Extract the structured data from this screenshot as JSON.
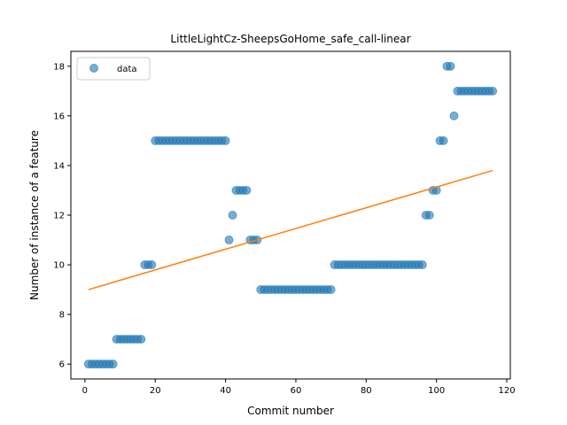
{
  "chart_data": {
    "type": "scatter",
    "title": "LittleLightCz-SheepsGoHome_safe_call-linear",
    "xlabel": "Commit number",
    "ylabel": "Number of instance of a feature",
    "xlim": [
      -4,
      121
    ],
    "ylim": [
      5.4,
      18.6
    ],
    "xticks": [
      0,
      20,
      40,
      60,
      80,
      100,
      120
    ],
    "yticks": [
      6,
      8,
      10,
      12,
      14,
      16,
      18
    ],
    "grid": false,
    "legend_placement": "top-left",
    "colors": {
      "scatter": "#1f77b4",
      "line": "#ff7f0e"
    },
    "series": [
      {
        "name": "data",
        "kind": "scatter",
        "points": [
          [
            1,
            6
          ],
          [
            2,
            6
          ],
          [
            3,
            6
          ],
          [
            4,
            6
          ],
          [
            5,
            6
          ],
          [
            6,
            6
          ],
          [
            7,
            6
          ],
          [
            8,
            6
          ],
          [
            9,
            7
          ],
          [
            10,
            7
          ],
          [
            11,
            7
          ],
          [
            12,
            7
          ],
          [
            13,
            7
          ],
          [
            14,
            7
          ],
          [
            15,
            7
          ],
          [
            16,
            7
          ],
          [
            17,
            10
          ],
          [
            18,
            10
          ],
          [
            19,
            10
          ],
          [
            20,
            15
          ],
          [
            21,
            15
          ],
          [
            22,
            15
          ],
          [
            23,
            15
          ],
          [
            24,
            15
          ],
          [
            25,
            15
          ],
          [
            26,
            15
          ],
          [
            27,
            15
          ],
          [
            28,
            15
          ],
          [
            29,
            15
          ],
          [
            30,
            15
          ],
          [
            31,
            15
          ],
          [
            32,
            15
          ],
          [
            33,
            15
          ],
          [
            34,
            15
          ],
          [
            35,
            15
          ],
          [
            36,
            15
          ],
          [
            37,
            15
          ],
          [
            38,
            15
          ],
          [
            39,
            15
          ],
          [
            40,
            15
          ],
          [
            41,
            11
          ],
          [
            42,
            12
          ],
          [
            43,
            13
          ],
          [
            44,
            13
          ],
          [
            45,
            13
          ],
          [
            46,
            13
          ],
          [
            47,
            11
          ],
          [
            48,
            11
          ],
          [
            49,
            11
          ],
          [
            50,
            9
          ],
          [
            51,
            9
          ],
          [
            52,
            9
          ],
          [
            53,
            9
          ],
          [
            54,
            9
          ],
          [
            55,
            9
          ],
          [
            56,
            9
          ],
          [
            57,
            9
          ],
          [
            58,
            9
          ],
          [
            59,
            9
          ],
          [
            60,
            9
          ],
          [
            61,
            9
          ],
          [
            62,
            9
          ],
          [
            63,
            9
          ],
          [
            64,
            9
          ],
          [
            65,
            9
          ],
          [
            66,
            9
          ],
          [
            67,
            9
          ],
          [
            68,
            9
          ],
          [
            69,
            9
          ],
          [
            70,
            9
          ],
          [
            71,
            10
          ],
          [
            72,
            10
          ],
          [
            73,
            10
          ],
          [
            74,
            10
          ],
          [
            75,
            10
          ],
          [
            76,
            10
          ],
          [
            77,
            10
          ],
          [
            78,
            10
          ],
          [
            79,
            10
          ],
          [
            80,
            10
          ],
          [
            81,
            10
          ],
          [
            82,
            10
          ],
          [
            83,
            10
          ],
          [
            84,
            10
          ],
          [
            85,
            10
          ],
          [
            86,
            10
          ],
          [
            87,
            10
          ],
          [
            88,
            10
          ],
          [
            89,
            10
          ],
          [
            90,
            10
          ],
          [
            91,
            10
          ],
          [
            92,
            10
          ],
          [
            93,
            10
          ],
          [
            94,
            10
          ],
          [
            95,
            10
          ],
          [
            96,
            10
          ],
          [
            97,
            12
          ],
          [
            98,
            12
          ],
          [
            99,
            13
          ],
          [
            100,
            13
          ],
          [
            101,
            15
          ],
          [
            102,
            15
          ],
          [
            103,
            18
          ],
          [
            104,
            18
          ],
          [
            105,
            16
          ],
          [
            106,
            17
          ],
          [
            107,
            17
          ],
          [
            108,
            17
          ],
          [
            109,
            17
          ],
          [
            110,
            17
          ],
          [
            111,
            17
          ],
          [
            112,
            17
          ],
          [
            113,
            17
          ],
          [
            114,
            17
          ],
          [
            115,
            17
          ],
          [
            116,
            17
          ]
        ]
      },
      {
        "kind": "line",
        "points": [
          [
            1,
            9.0
          ],
          [
            116,
            13.8
          ]
        ]
      }
    ]
  }
}
